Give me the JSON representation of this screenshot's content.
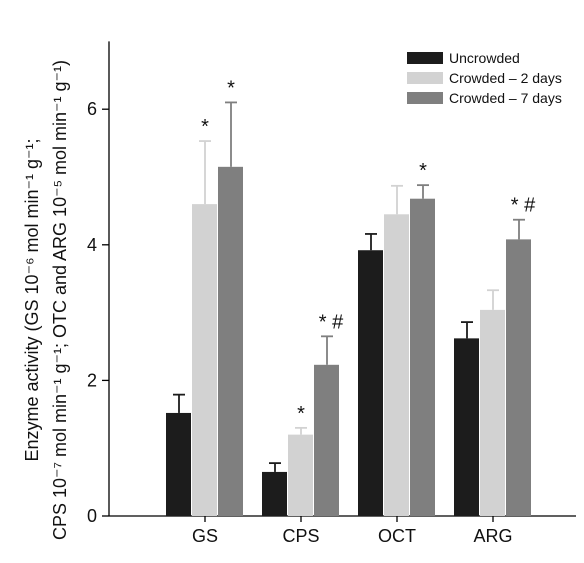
{
  "chart_data": {
    "type": "bar",
    "categories": [
      "GS",
      "CPS",
      "OCT",
      "ARG"
    ],
    "ylim": [
      0,
      7
    ],
    "yticks": [
      0,
      2,
      4,
      6
    ],
    "ylabel": {
      "line1": "Enzyme activity (GS 10⁻⁶ mol min⁻¹ g⁻¹;",
      "line2": "CPS 10⁻⁷ mol min⁻¹ g⁻¹; OTC and ARG 10⁻⁵ mol min⁻¹ g⁻¹)"
    },
    "legend_position": "top-right",
    "series": [
      {
        "name": "Uncrowded",
        "color": "#1c1c1c",
        "values": [
          1.52,
          0.65,
          3.92,
          2.62
        ],
        "errors": [
          0.27,
          0.13,
          0.24,
          0.24
        ],
        "markers": [
          "",
          "",
          "",
          ""
        ]
      },
      {
        "name": "Crowded – 2 days",
        "color": "#d2d2d2",
        "values": [
          4.6,
          1.2,
          4.45,
          3.04
        ],
        "errors": [
          0.93,
          0.1,
          0.42,
          0.29
        ],
        "markers": [
          "*",
          "*",
          "",
          ""
        ]
      },
      {
        "name": "Crowded – 7 days",
        "color": "#7f7f7f",
        "values": [
          5.15,
          2.23,
          4.68,
          4.08
        ],
        "errors": [
          0.95,
          0.42,
          0.2,
          0.29
        ],
        "markers": [
          "*",
          "*#",
          "*",
          "*#"
        ]
      }
    ]
  }
}
